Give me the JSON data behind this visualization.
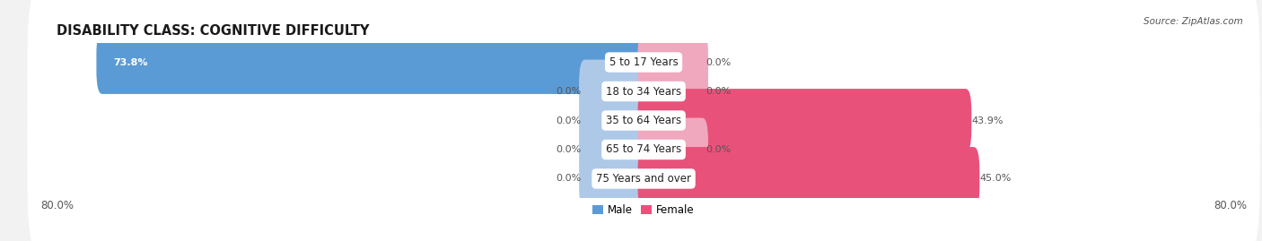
{
  "title": "DISABILITY CLASS: COGNITIVE DIFFICULTY",
  "source": "Source: ZipAtlas.com",
  "categories": [
    "5 to 17 Years",
    "18 to 34 Years",
    "35 to 64 Years",
    "65 to 74 Years",
    "75 Years and over"
  ],
  "male_values": [
    73.8,
    0.0,
    0.0,
    0.0,
    0.0
  ],
  "female_values": [
    0.0,
    0.0,
    43.9,
    0.0,
    45.0
  ],
  "male_color_full": "#5b9bd5",
  "male_color_small": "#aec9e8",
  "female_color_full": "#e8527a",
  "female_color_small": "#f0a8be",
  "male_label": "Male",
  "female_label": "Female",
  "xlim": 80.0,
  "background_color": "#f2f2f2",
  "row_bg_color": "#ffffff",
  "title_fontsize": 10.5,
  "label_fontsize": 8.5,
  "value_fontsize": 8.0,
  "axis_fontsize": 8.5,
  "small_bar_width": 8.0
}
